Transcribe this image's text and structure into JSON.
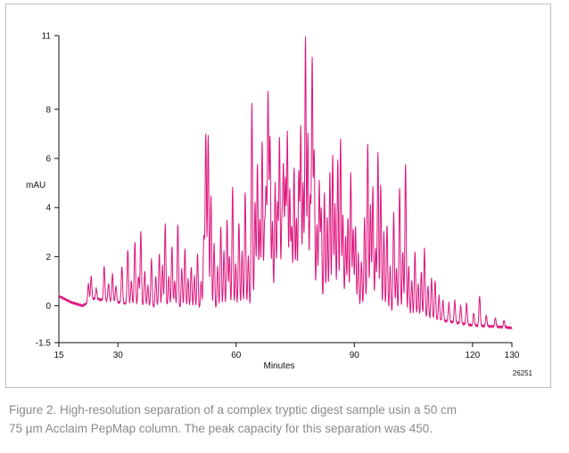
{
  "figure": {
    "id_label": "26251",
    "caption_lines": [
      "Figure 2. High-resolution separation of a complex tryptic digest sample usin a 50 cm",
      "75 µm Acclaim PepMap column. The peak capacity for this separation was 450."
    ]
  },
  "chart_data": {
    "type": "line",
    "title": "",
    "xlabel": "Minutes",
    "ylabel": "mAU",
    "xlim": [
      15,
      130
    ],
    "ylim": [
      -1.5,
      11
    ],
    "grid": false,
    "line_color": "#e0147c",
    "x_ticks": [
      {
        "value": 15,
        "label": "15"
      },
      {
        "value": 30,
        "label": "30"
      },
      {
        "value": 60,
        "label": "60"
      },
      {
        "value": 90,
        "label": "90"
      },
      {
        "value": 120,
        "label": "120"
      },
      {
        "value": 130,
        "label": "130"
      }
    ],
    "y_ticks": [
      {
        "value": -1.5,
        "label": "-1.5"
      },
      {
        "value": 0,
        "label": "0"
      },
      {
        "value": 2,
        "label": "2"
      },
      {
        "value": 4,
        "label": "4"
      },
      {
        "value": 6,
        "label": "6"
      },
      {
        "value": 8,
        "label": "8"
      },
      {
        "value": 11,
        "label": "11"
      }
    ],
    "baseline": [
      [
        15,
        0.4
      ],
      [
        18,
        0.15
      ],
      [
        21,
        0.0
      ],
      [
        24,
        0.3
      ],
      [
        27,
        0.2
      ],
      [
        30,
        0.15
      ],
      [
        35,
        0.0
      ],
      [
        45,
        -0.1
      ],
      [
        55,
        -0.2
      ],
      [
        65,
        -0.1
      ],
      [
        75,
        0.0
      ],
      [
        85,
        -0.1
      ],
      [
        95,
        -0.2
      ],
      [
        105,
        -0.5
      ],
      [
        112,
        -0.6
      ],
      [
        120,
        -0.8
      ],
      [
        126,
        -0.85
      ],
      [
        130,
        -0.9
      ]
    ],
    "peaks": [
      [
        22.5,
        0.9
      ],
      [
        23.2,
        1.2
      ],
      [
        24.5,
        0.7
      ],
      [
        26.5,
        1.6
      ],
      [
        27.6,
        0.9
      ],
      [
        28.6,
        1.3
      ],
      [
        29.5,
        0.8
      ],
      [
        31,
        1.6
      ],
      [
        32.5,
        2.3
      ],
      [
        33.4,
        1.0
      ],
      [
        34.3,
        2.6
      ],
      [
        35.2,
        1.2
      ],
      [
        35.8,
        3.0
      ],
      [
        36.8,
        1.4
      ],
      [
        37.6,
        0.8
      ],
      [
        38.5,
        1.9
      ],
      [
        39.6,
        1.2
      ],
      [
        40.5,
        2.1
      ],
      [
        41.3,
        1.6
      ],
      [
        42,
        3.3
      ],
      [
        42.9,
        1.2
      ],
      [
        43.7,
        2.4
      ],
      [
        44.4,
        1.0
      ],
      [
        45.2,
        3.3
      ],
      [
        46.2,
        1.5
      ],
      [
        47,
        2.3
      ],
      [
        47.8,
        1.1
      ],
      [
        48.6,
        1.6
      ],
      [
        49.4,
        1.2
      ],
      [
        50.2,
        2.1
      ],
      [
        51.1,
        1.0
      ],
      [
        51.8,
        2.8
      ],
      [
        52.3,
        7.0
      ],
      [
        52.9,
        6.9
      ],
      [
        53.6,
        4.5
      ],
      [
        54.4,
        2.5
      ],
      [
        55.3,
        1.6
      ],
      [
        56.1,
        3.2
      ],
      [
        56.9,
        2.2
      ],
      [
        57.7,
        3.5
      ],
      [
        58.3,
        2.0
      ],
      [
        59.1,
        4.8
      ],
      [
        59.9,
        1.7
      ],
      [
        60.7,
        3.4
      ],
      [
        61.5,
        2.2
      ],
      [
        62.3,
        4.6
      ],
      [
        63.1,
        2.0
      ],
      [
        64,
        8.2
      ],
      [
        64.8,
        4.2
      ],
      [
        65.4,
        5.8
      ],
      [
        66,
        3.5
      ],
      [
        66.6,
        6.7
      ],
      [
        67.2,
        3.1
      ],
      [
        67.6,
        4.6
      ],
      [
        68.1,
        8.6
      ],
      [
        68.6,
        6.8
      ],
      [
        69.2,
        3.4
      ],
      [
        69.9,
        5.0
      ],
      [
        70.5,
        4.1
      ],
      [
        71,
        6.8
      ],
      [
        71.6,
        3.3
      ],
      [
        72,
        5.5
      ],
      [
        72.5,
        5.1
      ],
      [
        73,
        7.0
      ],
      [
        73.6,
        4.7
      ],
      [
        74.1,
        3.2
      ],
      [
        74.7,
        5.6
      ],
      [
        75.3,
        3.6
      ],
      [
        75.9,
        5.4
      ],
      [
        76.4,
        7.2
      ],
      [
        77,
        5.0
      ],
      [
        77.6,
        10.9
      ],
      [
        78.2,
        7.0
      ],
      [
        78.8,
        4.4
      ],
      [
        79.3,
        10.0
      ],
      [
        79.8,
        6.2
      ],
      [
        80.5,
        3.3
      ],
      [
        81.1,
        5.0
      ],
      [
        81.6,
        3.9
      ],
      [
        82.4,
        4.6
      ],
      [
        83.1,
        3.6
      ],
      [
        83.8,
        5.4
      ],
      [
        84.5,
        6.1
      ],
      [
        85.1,
        4.1
      ],
      [
        85.8,
        5.9
      ],
      [
        86.5,
        6.8
      ],
      [
        87.1,
        3.7
      ],
      [
        87.8,
        2.8
      ],
      [
        88.4,
        3.6
      ],
      [
        89.1,
        5.4
      ],
      [
        89.7,
        3.1
      ],
      [
        90.3,
        3.2
      ],
      [
        91,
        2.1
      ],
      [
        91.8,
        1.8
      ],
      [
        92.6,
        3.6
      ],
      [
        93.4,
        6.6
      ],
      [
        94.1,
        4.1
      ],
      [
        94.7,
        4.8
      ],
      [
        95.4,
        2.3
      ],
      [
        96,
        6.2
      ],
      [
        96.7,
        4.9
      ],
      [
        97.5,
        3.0
      ],
      [
        98.3,
        3.3
      ],
      [
        99.1,
        1.6
      ],
      [
        100,
        3.8
      ],
      [
        100.7,
        1.5
      ],
      [
        101.5,
        4.8
      ],
      [
        102.3,
        2.2
      ],
      [
        103,
        5.8
      ],
      [
        103.8,
        1.6
      ],
      [
        104.6,
        1.0
      ],
      [
        105.4,
        2.2
      ],
      [
        106.2,
        0.9
      ],
      [
        107,
        1.4
      ],
      [
        107.8,
        2.3
      ],
      [
        108.7,
        0.8
      ],
      [
        109.6,
        1.1
      ],
      [
        110.5,
        1.0
      ],
      [
        111.5,
        0.4
      ],
      [
        112.5,
        0.2
      ],
      [
        114,
        0.1
      ],
      [
        115.5,
        0.2
      ],
      [
        117,
        0.0
      ],
      [
        118.5,
        0.1
      ],
      [
        120.3,
        -0.3
      ],
      [
        121.8,
        0.4
      ],
      [
        123.5,
        -0.4
      ],
      [
        125.8,
        -0.5
      ],
      [
        128,
        -0.6
      ]
    ]
  }
}
